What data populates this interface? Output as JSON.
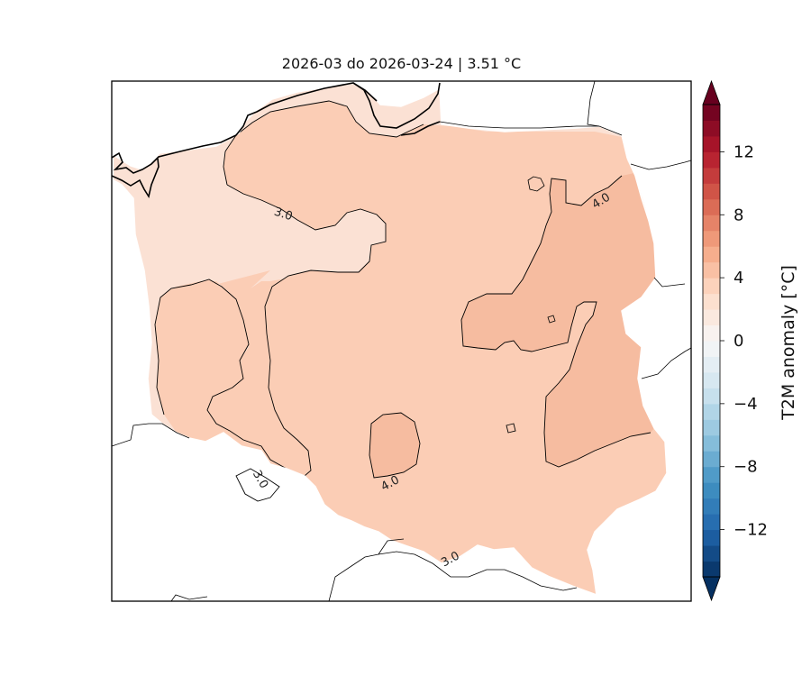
{
  "title": "2026-03 do 2026-03-24 | 3.51 °C",
  "colorbar": {
    "label": "T2M anomaly [°C]",
    "min": -15,
    "max": 15,
    "step": 1.0,
    "ticks": [
      "12",
      "8",
      "4",
      "0",
      "−4",
      "−8",
      "−12"
    ],
    "tick_values": [
      12,
      8,
      4,
      0,
      -4,
      -8,
      -12
    ],
    "extend": "both",
    "colormap": "RdBu_r"
  },
  "regions": {
    "fill_2_3": "#fbe1d4",
    "fill_3_4": "#fbcdb5",
    "fill_4_5": "#f6bca0"
  },
  "contour_labels": [
    {
      "text": "3.0",
      "name": "contour-label-3-north"
    },
    {
      "text": "4.0",
      "name": "contour-label-4-northeast"
    },
    {
      "text": "4.0",
      "name": "contour-label-4-south"
    },
    {
      "text": "3.0",
      "name": "contour-label-3-southwest"
    },
    {
      "text": "3.0",
      "name": "contour-label-3-south"
    }
  ],
  "colors": {
    "frame": "#000000",
    "coast": "#000000",
    "border": "#000000",
    "background": "#ffffff"
  }
}
